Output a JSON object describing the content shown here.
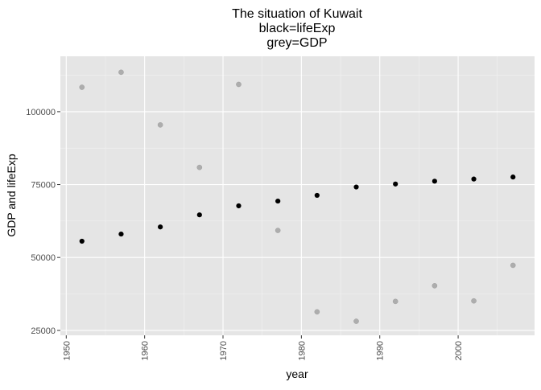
{
  "chart_data": {
    "type": "scatter",
    "title": [
      "The situation of Kuwait",
      "black=lifeExp",
      "grey=GDP"
    ],
    "xlabel": "year",
    "ylabel": "GDP and lifeExp",
    "xlim": [
      1949.25,
      2009.75
    ],
    "ylim": [
      23300,
      119000
    ],
    "x_ticks": [
      1950,
      1960,
      1970,
      1980,
      1990,
      2000
    ],
    "y_ticks": [
      25000,
      50000,
      75000,
      100000
    ],
    "y_tick_labels": [
      "25000",
      "50000",
      "75000",
      "100000"
    ],
    "grid": true,
    "panel_background": "#e5e5e5",
    "series": [
      {
        "color": "#000000",
        "opacity": 1,
        "x": [
          1952,
          1957,
          1962,
          1967,
          1972,
          1977,
          1982,
          1987,
          1992,
          1997,
          2002,
          2007
        ],
        "y": [
          55570,
          58030,
          60470,
          64620,
          67710,
          69340,
          71310,
          74170,
          75190,
          76160,
          76900,
          77590
        ]
      },
      {
        "color": "#9a9a9a",
        "opacity": 0.75,
        "x": [
          1952,
          1957,
          1962,
          1967,
          1972,
          1977,
          1982,
          1987,
          1992,
          1997,
          2002,
          2007
        ],
        "y": [
          108380,
          113520,
          95460,
          80890,
          109350,
          59270,
          31350,
          28120,
          34930,
          40300,
          35110,
          47310
        ]
      }
    ]
  }
}
